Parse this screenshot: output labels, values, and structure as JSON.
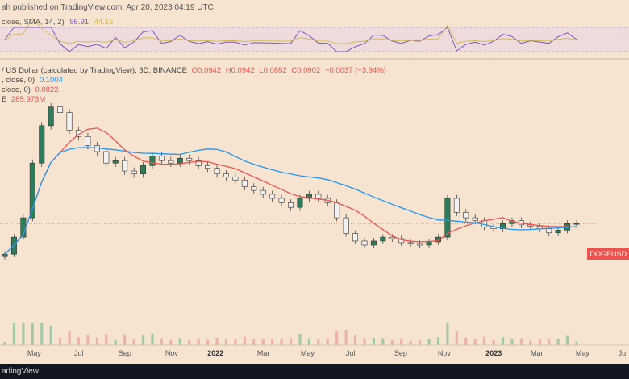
{
  "header": {
    "published": "ah published on TradingView.com, Apr 20, 2023 04:19 UTC"
  },
  "rsi": {
    "label": "close, SMA, 14, 2)",
    "value": "56.91",
    "value2": "44.15",
    "color": "#7e57c2",
    "band_color": "#d4b84a"
  },
  "legend": {
    "symbol": "/ US Dollar (calculated by TradingView), 3D, BINANCE",
    "o": "O0.0942",
    "h": "H0.0942",
    "l": "L0.0852",
    "c": "C0.0902",
    "change": "−0.0037 (−3.94%)",
    "ma_blue_label": ", close, 0)",
    "ma_blue_value": "0.1004",
    "ma_red_label": "close, 0)",
    "ma_red_value": "0.0822",
    "vol_label": "E",
    "vol_value": "285.973M",
    "blue_color": "#2196f3",
    "red_color": "#ef5350"
  },
  "price_tag": "DOGEUSD",
  "x_axis": [
    "May",
    "Jul",
    "Sep",
    "Nov",
    "2022",
    "Mar",
    "May",
    "Jul",
    "Sep",
    "Nov",
    "2023",
    "Mar",
    "May",
    "Ju"
  ],
  "x_axis_bold": [
    "2022",
    "2023"
  ],
  "footer": {
    "brand": "adingView"
  },
  "chart_data": {
    "type": "candlestick",
    "symbol": "DOGEUSD",
    "interval": "3D",
    "exchange": "BINANCE",
    "last": {
      "open": 0.0942,
      "high": 0.0942,
      "low": 0.0852,
      "close": 0.0902,
      "change": -0.0037,
      "change_pct": -3.94
    },
    "moving_averages": [
      {
        "value": 0.1004,
        "color": "#2196f3"
      },
      {
        "value": 0.0822,
        "color": "#ef5350"
      }
    ],
    "volume_last": "285.973M",
    "rsi_last": 56.91,
    "x_ticks": [
      "May",
      "Jul",
      "Sep",
      "Nov",
      "2022",
      "Mar",
      "May",
      "Jul",
      "Sep",
      "Nov",
      "2023",
      "Mar",
      "May",
      "Ju"
    ],
    "close_series_approx": [
      0.05,
      0.07,
      0.1,
      0.25,
      0.45,
      0.6,
      0.55,
      0.42,
      0.38,
      0.33,
      0.3,
      0.25,
      0.26,
      0.22,
      0.21,
      0.24,
      0.28,
      0.26,
      0.25,
      0.27,
      0.26,
      0.24,
      0.23,
      0.21,
      0.2,
      0.19,
      0.17,
      0.16,
      0.15,
      0.14,
      0.13,
      0.12,
      0.14,
      0.15,
      0.14,
      0.13,
      0.1,
      0.075,
      0.065,
      0.06,
      0.065,
      0.07,
      0.068,
      0.063,
      0.062,
      0.06,
      0.064,
      0.07,
      0.14,
      0.11,
      0.1,
      0.095,
      0.085,
      0.082,
      0.09,
      0.095,
      0.088,
      0.086,
      0.082,
      0.076,
      0.08,
      0.09,
      0.0902
    ]
  }
}
